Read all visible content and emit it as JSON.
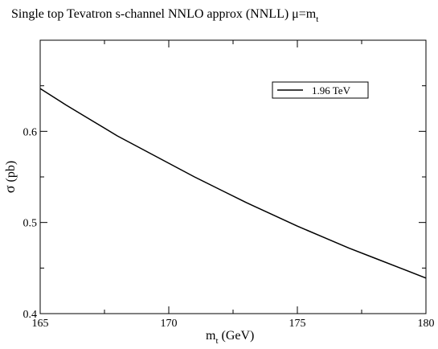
{
  "chart_data": {
    "type": "line",
    "title": "Single top Tevatron   s-channel  NNLO approx (NNLL)  μ=m",
    "title_subscript": "t",
    "xlabel": {
      "main": "m",
      "sub": "t",
      "rest": " (GeV)"
    },
    "ylabel": {
      "symbol": "σ",
      "unit": "(pb)"
    },
    "xlim": [
      165,
      180
    ],
    "ylim": [
      0.4,
      0.7
    ],
    "x_ticks": [
      {
        "value": 165,
        "label": "165"
      },
      {
        "value": 170,
        "label": "170"
      },
      {
        "value": 175,
        "label": "175"
      },
      {
        "value": 180,
        "label": "180"
      }
    ],
    "y_ticks": [
      {
        "value": 0.4,
        "label": "0.4"
      },
      {
        "value": 0.5,
        "label": "0.5"
      },
      {
        "value": 0.6,
        "label": "0.6"
      }
    ],
    "grid": false,
    "legend_position": "top-right",
    "series": [
      {
        "name": "1.96 TeV",
        "color": "#000000",
        "x": [
          165,
          166,
          167,
          168,
          169,
          170,
          171,
          172,
          173,
          174,
          175,
          176,
          177,
          178,
          179,
          180
        ],
        "y": [
          0.647,
          0.629,
          0.612,
          0.595,
          0.58,
          0.565,
          0.55,
          0.536,
          0.522,
          0.509,
          0.496,
          0.484,
          0.472,
          0.461,
          0.45,
          0.439
        ]
      }
    ]
  }
}
